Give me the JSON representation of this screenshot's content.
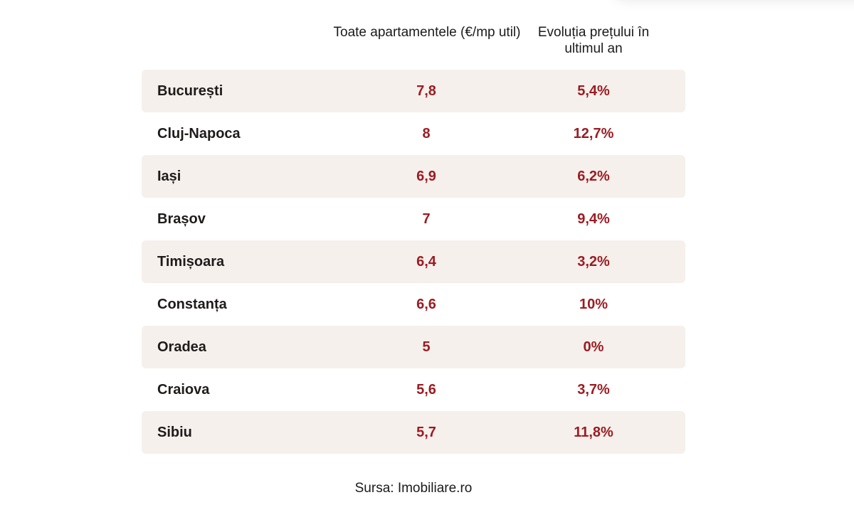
{
  "table": {
    "headers": {
      "price": "Toate apartamentele  (€/mp util)",
      "change": "Evoluția prețului în ultimul an"
    },
    "rows": [
      {
        "city": "București",
        "price": "7,8",
        "change": "5,4%"
      },
      {
        "city": "Cluj-Napoca",
        "price": "8",
        "change": "12,7%"
      },
      {
        "city": "Iași",
        "price": "6,9",
        "change": "6,2%"
      },
      {
        "city": "Brașov",
        "price": "7",
        "change": "9,4%"
      },
      {
        "city": "Timișoara",
        "price": "6,4",
        "change": "3,2%"
      },
      {
        "city": "Constanța",
        "price": "6,6",
        "change": "10%"
      },
      {
        "city": "Oradea",
        "price": "5",
        "change": "0%"
      },
      {
        "city": "Craiova",
        "price": "5,6",
        "change": "3,7%"
      },
      {
        "city": "Sibiu",
        "price": "5,7",
        "change": "11,8%"
      }
    ]
  },
  "source": "Sursa: Imobiliare.ro",
  "colors": {
    "row_shade": "#f6f0ec",
    "value_text": "#9b1c22",
    "city_text": "#1f1b1b"
  }
}
